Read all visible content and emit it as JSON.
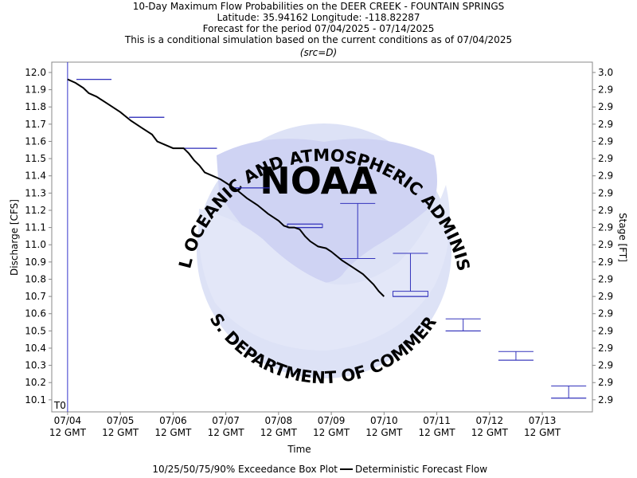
{
  "colors": {
    "box": "#3333bb",
    "t0_line": "#3333cc",
    "deterministic": "#000000",
    "watermark": "#d8dcf5",
    "watermark_text": "#b9bfe8",
    "frame": "#888888"
  },
  "watermark": {
    "logo": "NOAA",
    "ring_top": "NATIONAL OCEANIC AND ATMOSPHERIC ADMINISTRATION",
    "ring_bottom": "U.S. DEPARTMENT OF COMMERCE"
  },
  "chart_data": {
    "type": "box-and-line",
    "title_lines": [
      "10-Day Maximum Flow Probabilities on the DEER CREEK - FOUNTAIN SPRINGS",
      "Latitude: 35.94162 Longitude: -118.82287",
      "Forecast for the period 07/04/2025 - 07/14/2025",
      "This is a conditional simulation based on the current conditions as of 07/04/2025"
    ],
    "subtitle": "(src=D)",
    "xlabel": "Time",
    "ylabel": "Discharge [CFS]",
    "y2label": "Stage [FT]",
    "ylim": [
      10.03,
      12.06
    ],
    "xlim": [
      -0.3,
      9.95
    ],
    "y_ticks": [
      10.1,
      10.2,
      10.3,
      10.4,
      10.5,
      10.6,
      10.7,
      10.8,
      10.9,
      11.0,
      11.1,
      11.2,
      11.3,
      11.4,
      11.5,
      11.6,
      11.7,
      11.8,
      11.9,
      12.0
    ],
    "y2_tick_labels": [
      "2.9",
      "2.9",
      "2.9",
      "2.9",
      "2.9",
      "2.9",
      "2.9",
      "2.9",
      "2.9",
      "2.9",
      "2.9",
      "2.9",
      "2.9",
      "2.9",
      "2.9",
      "2.9",
      "2.9",
      "2.9",
      "2.9",
      "3.0"
    ],
    "x_ticks": [
      {
        "x": 0,
        "date": "07/04",
        "time": "12 GMT"
      },
      {
        "x": 1,
        "date": "07/05",
        "time": "12 GMT"
      },
      {
        "x": 2,
        "date": "07/06",
        "time": "12 GMT"
      },
      {
        "x": 3,
        "date": "07/07",
        "time": "12 GMT"
      },
      {
        "x": 4,
        "date": "07/08",
        "time": "12 GMT"
      },
      {
        "x": 5,
        "date": "07/09",
        "time": "12 GMT"
      },
      {
        "x": 6,
        "date": "07/10",
        "time": "12 GMT"
      },
      {
        "x": 7,
        "date": "07/11",
        "time": "12 GMT"
      },
      {
        "x": 8,
        "date": "07/12",
        "time": "12 GMT"
      },
      {
        "x": 9,
        "date": "07/13",
        "time": "12 GMT"
      }
    ],
    "t0_label": "T0",
    "t0_x": 0,
    "boxes": [
      {
        "x": 0.5,
        "p10": 11.96,
        "p25": 11.96,
        "p50": 11.96,
        "p75": 11.96,
        "p90": 11.96
      },
      {
        "x": 1.5,
        "p10": 11.74,
        "p25": 11.74,
        "p50": 11.74,
        "p75": 11.74,
        "p90": 11.74
      },
      {
        "x": 2.5,
        "p10": 11.56,
        "p25": 11.56,
        "p50": 11.56,
        "p75": 11.56,
        "p90": 11.56
      },
      {
        "x": 3.5,
        "p10": 11.33,
        "p25": 11.33,
        "p50": 11.33,
        "p75": 11.33,
        "p90": 11.33
      },
      {
        "x": 4.5,
        "p10": 11.1,
        "p25": 11.1,
        "p50": 11.1,
        "p75": 11.12,
        "p90": 11.12
      },
      {
        "x": 5.5,
        "p10": 10.92,
        "p25": 10.92,
        "p50": 10.92,
        "p75": 10.92,
        "p90": 11.24
      },
      {
        "x": 6.5,
        "p10": 10.7,
        "p25": 10.7,
        "p50": 10.7,
        "p75": 10.73,
        "p90": 10.95
      },
      {
        "x": 7.5,
        "p10": 10.5,
        "p25": 10.5,
        "p50": 10.5,
        "p75": 10.5,
        "p90": 10.57
      },
      {
        "x": 8.5,
        "p10": 10.33,
        "p25": 10.33,
        "p50": 10.33,
        "p75": 10.33,
        "p90": 10.38
      },
      {
        "x": 9.5,
        "p10": 10.11,
        "p25": 10.11,
        "p50": 10.11,
        "p75": 10.11,
        "p90": 10.18
      }
    ],
    "deterministic": {
      "name": "Deterministic Forecast Flow",
      "x": [
        0.0,
        0.15,
        0.3,
        0.4,
        0.55,
        0.7,
        0.85,
        1.0,
        1.2,
        1.4,
        1.6,
        1.7,
        1.85,
        2.0,
        2.1,
        2.2,
        2.3,
        2.4,
        2.5,
        2.6,
        2.75,
        2.9,
        3.0,
        3.2,
        3.4,
        3.6,
        3.8,
        4.0,
        4.1,
        4.2,
        4.3,
        4.4,
        4.5,
        4.6,
        4.75,
        4.9,
        5.0,
        5.2,
        5.4,
        5.6,
        5.8,
        5.9,
        6.0
      ],
      "y": [
        11.96,
        11.94,
        11.91,
        11.88,
        11.86,
        11.83,
        11.8,
        11.77,
        11.72,
        11.68,
        11.64,
        11.6,
        11.58,
        11.56,
        11.56,
        11.56,
        11.53,
        11.49,
        11.46,
        11.42,
        11.4,
        11.38,
        11.36,
        11.32,
        11.27,
        11.23,
        11.18,
        11.14,
        11.11,
        11.1,
        11.1,
        11.09,
        11.05,
        11.02,
        10.99,
        10.98,
        10.96,
        10.91,
        10.87,
        10.83,
        10.77,
        10.73,
        10.7
      ]
    },
    "legend": {
      "placement": "bottom",
      "box_label": "10/25/50/75/90% Exceedance Box Plot",
      "line_label": "Deterministic Forecast Flow"
    }
  }
}
